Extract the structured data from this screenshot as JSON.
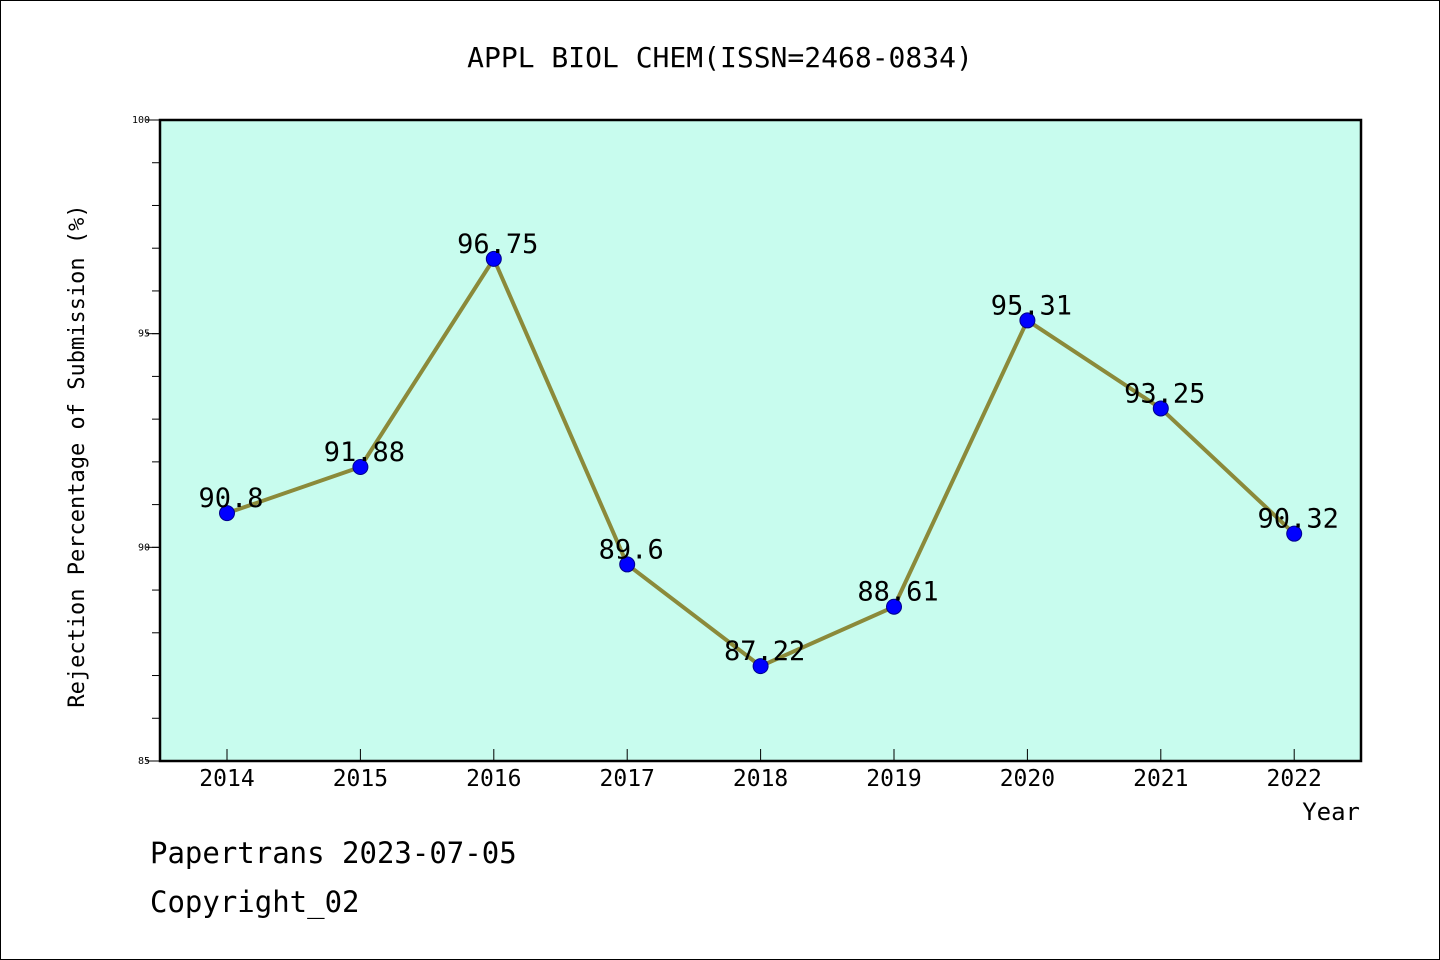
{
  "chart_data": {
    "type": "line",
    "title": "APPL BIOL CHEM(ISSN=2468-0834)",
    "xlabel": "Year",
    "ylabel": "Rejection Percentage of Submission (%)",
    "categories": [
      "2014",
      "2015",
      "2016",
      "2017",
      "2018",
      "2019",
      "2020",
      "2021",
      "2022"
    ],
    "values": [
      90.8,
      91.88,
      96.75,
      89.6,
      87.22,
      88.61,
      95.31,
      93.25,
      90.32
    ],
    "data_labels": [
      "90.8",
      "91.88",
      "96.75",
      "89.6",
      "87.22",
      "88.61",
      "95.31",
      "93.25",
      "90.32"
    ],
    "ylim": [
      85,
      100
    ],
    "yticks": [
      85,
      90,
      95,
      100
    ],
    "ytick_labels": [
      "85",
      "90",
      "95",
      "100"
    ],
    "grid": false,
    "legend": "none",
    "colors": {
      "plot_background": "#c8fcee",
      "line": "#8b8a3a",
      "marker": "#0000ff"
    }
  },
  "footer": {
    "line1": "Papertrans 2023-07-05",
    "line2": "Copyright_02"
  }
}
